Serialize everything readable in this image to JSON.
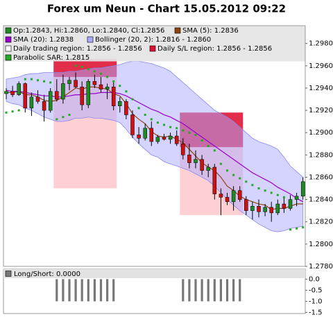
{
  "chart_data": [
    {
      "type": "candlestick",
      "title": "Forex um Neun - Chart 15.05.2012 09:22",
      "ylim": [
        1.278,
        1.2996
      ],
      "yticks": [
        {
          "value": 1.298,
          "label": "1.2980"
        },
        {
          "value": 1.296,
          "label": "1.2960"
        },
        {
          "value": 1.294,
          "label": "1.2940"
        },
        {
          "value": 1.292,
          "label": "1.2920"
        },
        {
          "value": 1.29,
          "label": "1.2900"
        },
        {
          "value": 1.288,
          "label": "1.2880"
        },
        {
          "value": 1.286,
          "label": "1.2860"
        },
        {
          "value": 1.284,
          "label": "1.2840"
        },
        {
          "value": 1.282,
          "label": "1.2820"
        },
        {
          "value": 1.28,
          "label": "1.2800"
        },
        {
          "value": 1.278,
          "label": "1.2780"
        }
      ],
      "candles": {
        "name": "Op:1.2843, Hi:1.2860, Lo:1.2840, Cl:1.2856",
        "color": "#1f8a1f",
        "color_down": "#cc1111",
        "open": [
          1.2935,
          1.2937,
          1.2934,
          1.2944,
          1.2922,
          1.2932,
          1.2928,
          1.292,
          1.2937,
          1.293,
          1.2944,
          1.2947,
          1.2941,
          1.2925,
          1.2946,
          1.2943,
          1.2939,
          1.2941,
          1.2924,
          1.2928,
          1.2916,
          1.2898,
          1.2895,
          1.2904,
          1.2892,
          1.2896,
          1.2894,
          1.2897,
          1.289,
          1.288,
          1.2873,
          1.2876,
          1.2866,
          1.2869,
          1.2845,
          1.2842,
          1.2838,
          1.2848,
          1.284,
          1.283,
          1.2834,
          1.2829,
          1.2833,
          1.2828,
          1.2836,
          1.2832,
          1.284,
          1.2843
        ],
        "high": [
          1.294,
          1.2942,
          1.2946,
          1.2945,
          1.2936,
          1.2938,
          1.2934,
          1.294,
          1.2948,
          1.2952,
          1.295,
          1.2954,
          1.2946,
          1.2948,
          1.2952,
          1.295,
          1.2944,
          1.2945,
          1.2932,
          1.293,
          1.292,
          1.2905,
          1.2908,
          1.291,
          1.2898,
          1.2899,
          1.29,
          1.2902,
          1.2895,
          1.289,
          1.2884,
          1.288,
          1.2872,
          1.2872,
          1.285,
          1.2846,
          1.2852,
          1.2852,
          1.2843,
          1.2838,
          1.284,
          1.2836,
          1.2838,
          1.284,
          1.2842,
          1.2844,
          1.2846,
          1.286
        ],
        "low": [
          1.293,
          1.2932,
          1.2933,
          1.2918,
          1.2915,
          1.2926,
          1.291,
          1.2918,
          1.2928,
          1.2926,
          1.2938,
          1.294,
          1.292,
          1.2922,
          1.294,
          1.2936,
          1.293,
          1.292,
          1.2918,
          1.2912,
          1.2895,
          1.289,
          1.2893,
          1.2888,
          1.289,
          1.2893,
          1.289,
          1.2888,
          1.2876,
          1.2868,
          1.2868,
          1.2862,
          1.286,
          1.284,
          1.2826,
          1.2835,
          1.283,
          1.2838,
          1.2826,
          1.2822,
          1.2824,
          1.2825,
          1.282,
          1.2826,
          1.2828,
          1.283,
          1.2834,
          1.284
        ],
        "close": [
          1.2937,
          1.2934,
          1.2944,
          1.2922,
          1.2932,
          1.2928,
          1.292,
          1.2937,
          1.293,
          1.2944,
          1.2947,
          1.2941,
          1.2925,
          1.2946,
          1.2943,
          1.2939,
          1.2941,
          1.2924,
          1.2928,
          1.2916,
          1.2898,
          1.2895,
          1.2904,
          1.2892,
          1.2896,
          1.2894,
          1.2897,
          1.289,
          1.288,
          1.2873,
          1.2876,
          1.2866,
          1.2869,
          1.2845,
          1.2842,
          1.2838,
          1.2848,
          1.284,
          1.283,
          1.2834,
          1.2829,
          1.2833,
          1.2828,
          1.2836,
          1.2832,
          1.284,
          1.2843,
          1.2856
        ]
      },
      "overlays": [
        {
          "name": "SMA (5): 1.2836",
          "color": "#8b4513",
          "values": [
            1.2936,
            1.2936,
            1.2937,
            1.2934,
            1.2934,
            1.2932,
            1.2929,
            1.2928,
            1.2929,
            1.2932,
            1.2936,
            1.294,
            1.2939,
            1.2941,
            1.2941,
            1.294,
            1.2939,
            1.2935,
            1.2933,
            1.2926,
            1.2917,
            1.2912,
            1.2908,
            1.2901,
            1.2897,
            1.2896,
            1.2897,
            1.2894,
            1.2891,
            1.2885,
            1.2879,
            1.2873,
            1.2869,
            1.2866,
            1.286,
            1.2852,
            1.2848,
            1.2843,
            1.284,
            1.2838,
            1.2836,
            1.2835,
            1.2831,
            1.2832,
            1.2832,
            1.2834,
            1.2836,
            1.2836
          ]
        },
        {
          "name": "SMA (20): 1.2838",
          "color": "#9900cc",
          "values": [
            1.2938,
            1.2937,
            1.2937,
            1.2936,
            1.2935,
            1.2934,
            1.2933,
            1.2933,
            1.2932,
            1.2932,
            1.2933,
            1.2934,
            1.2934,
            1.2935,
            1.2935,
            1.2936,
            1.2936,
            1.2936,
            1.2935,
            1.2933,
            1.293,
            1.2927,
            1.2924,
            1.2921,
            1.2919,
            1.2916,
            1.2914,
            1.2911,
            1.2908,
            1.2904,
            1.29,
            1.2896,
            1.2892,
            1.2888,
            1.2884,
            1.288,
            1.2876,
            1.2872,
            1.2868,
            1.2864,
            1.2861,
            1.2858,
            1.2855,
            1.2851,
            1.2848,
            1.2845,
            1.2841,
            1.2838
          ]
        }
      ],
      "band": {
        "name": "Bollinger (20, 2): 1.2816 - 1.2860",
        "color": "#aaaaff",
        "upper": [
          1.2948,
          1.2949,
          1.295,
          1.2952,
          1.2953,
          1.2953,
          1.2954,
          1.2954,
          1.2954,
          1.2954,
          1.2955,
          1.2955,
          1.2956,
          1.2957,
          1.2958,
          1.2958,
          1.2959,
          1.296,
          1.2961,
          1.2963,
          1.2964,
          1.2964,
          1.2963,
          1.2962,
          1.296,
          1.2958,
          1.2955,
          1.295,
          1.2945,
          1.294,
          1.2935,
          1.293,
          1.2925,
          1.292,
          1.2917,
          1.2914,
          1.291,
          1.2905,
          1.29,
          1.2895,
          1.2892,
          1.289,
          1.2888,
          1.2885,
          1.2878,
          1.287,
          1.2865,
          1.286
        ],
        "lower": [
          1.2928,
          1.2926,
          1.2925,
          1.2922,
          1.292,
          1.2917,
          1.2914,
          1.2912,
          1.291,
          1.291,
          1.2911,
          1.2913,
          1.2913,
          1.2914,
          1.2913,
          1.2913,
          1.2912,
          1.2911,
          1.2909,
          1.2903,
          1.2896,
          1.289,
          1.2885,
          1.288,
          1.2878,
          1.2874,
          1.2872,
          1.287,
          1.2868,
          1.2866,
          1.2863,
          1.286,
          1.2857,
          1.2852,
          1.2846,
          1.284,
          1.2835,
          1.283,
          1.2826,
          1.2822,
          1.2818,
          1.2815,
          1.2812,
          1.2811,
          1.2812,
          1.2814,
          1.2815,
          1.2816
        ]
      },
      "regions": [
        {
          "name": "Daily trading region: 1.2856 - 1.2856",
          "color": "#ffc4c8",
          "items": [
            {
              "start": 8,
              "end": 17,
              "low": 1.285,
              "high": 1.2966
            },
            {
              "start": 28,
              "end": 37,
              "low": 1.2826,
              "high": 1.2918
            }
          ]
        },
        {
          "name": "Daily S/L region: 1.2856 - 1.2856",
          "color": "#dd1133",
          "items": [
            {
              "start": 8,
              "end": 17,
              "low": 1.295,
              "high": 1.2966
            },
            {
              "start": 28,
              "end": 37,
              "low": 1.2887,
              "high": 1.2918
            }
          ]
        }
      ],
      "sar": {
        "name": "Parabolic SAR: 1.2815",
        "color": "#22aa22",
        "values": [
          1.2918,
          1.2919,
          1.292,
          1.2948,
          1.2948,
          1.2947,
          1.2946,
          1.2945,
          1.2912,
          1.2914,
          1.2916,
          1.296,
          1.2959,
          1.2957,
          1.2955,
          1.2953,
          1.295,
          1.2946,
          1.2942,
          1.2937,
          1.293,
          1.2922,
          1.2916,
          1.2912,
          1.2909,
          1.2907,
          1.2905,
          1.2904,
          1.2902,
          1.29,
          1.2898,
          1.2893,
          1.2888,
          1.2884,
          1.2872,
          1.2866,
          1.2862,
          1.2859,
          1.2856,
          1.2853,
          1.285,
          1.2848,
          1.2846,
          1.2844,
          1.2842,
          1.2813,
          1.2814,
          1.2815
        ]
      }
    },
    {
      "type": "bar",
      "name": "Long/Short: 0.0000",
      "color": "#777777",
      "ylim": [
        -1.55,
        0.2
      ],
      "yticks": [
        {
          "value": 0,
          "label": "0.0"
        },
        {
          "value": -0.5,
          "label": "-0.5"
        },
        {
          "value": -1,
          "label": "-1.0"
        },
        {
          "value": -1.5,
          "label": "-1.5"
        }
      ],
      "values": [
        0,
        0,
        0,
        0,
        0,
        0,
        0,
        0,
        -1,
        -1,
        -1,
        -1,
        -1,
        -1,
        -1,
        -1,
        -1,
        -1,
        0,
        0,
        0,
        0,
        0,
        0,
        0,
        0,
        0,
        0,
        -1,
        -1,
        -1,
        -1,
        -1,
        -1,
        -1,
        -1,
        -1,
        -1,
        0,
        0,
        0,
        0,
        0,
        0,
        0,
        0,
        0,
        0
      ]
    }
  ]
}
